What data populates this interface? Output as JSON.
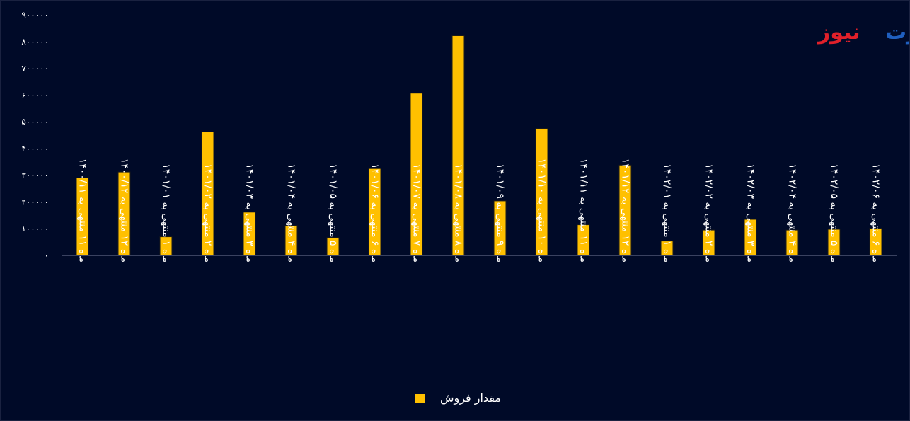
{
  "logo": {
    "part1": "تجارت",
    "part2": "نیوز",
    "color1": "#1f5fbf",
    "color2": "#e0202a"
  },
  "colors": {
    "background": "#000a28",
    "bar": "#ffc000",
    "bar_edge": "#1a1a1a",
    "text": "#ffffff"
  },
  "chart_data": {
    "type": "bar",
    "title": "",
    "xlabel": "",
    "ylabel": "",
    "ylim": [
      0,
      900000
    ],
    "y_ticks": [
      0,
      100000,
      200000,
      300000,
      400000,
      500000,
      600000,
      700000,
      800000,
      900000
    ],
    "y_tick_labels": [
      "۰",
      "۱۰۰۰۰۰",
      "۲۰۰۰۰۰",
      "۳۰۰۰۰۰",
      "۴۰۰۰۰۰",
      "۵۰۰۰۰۰",
      "۶۰۰۰۰۰",
      "۷۰۰۰۰۰",
      "۸۰۰۰۰۰",
      "۹۰۰۰۰۰"
    ],
    "grid": false,
    "legend_position": "bottom",
    "categories": [
      "ماه ۱۱ منتهی به ۱۴۰۰/۱۱",
      "ماه ۱۲ منتهی به ۱۴۰۰/۱۲",
      "ماه ۱ منتهی به ۱۴۰۱/۰۱",
      "ماه ۲ منتهی به ۱۴۰۱/۰۲",
      "ماه ۳ منتهی به ۱۴۰۱/۰۳",
      "ماه ۴ منتهی به ۱۴۰۱/۰۴",
      "ماه ۵ منتهی به ۱۴۰۱/۰۵",
      "ماه ۶ منتهی به ۱۴۰۱/۰۶",
      "ماه ۷ منتهی به ۱۴۰۱/۰۷",
      "ماه ۸ منتهی به ۱۴۰۱/۰۸",
      "ماه ۹ منتهی به ۱۴۰۱/۰۹",
      "ماه ۱۰ منتهی به ۱۴۰۱/۱۰",
      "ماه ۱۱ منتهی به ۱۴۰۱/۱۱",
      "ماه ۱۲ منتهی به ۱۴۰۱/۱۲",
      "ماه ۱ منتهی به ۱۴۰۲/۰۱",
      "ماه ۲ منتهی به ۱۴۰۲/۰۲",
      "ماه ۳ منتهی به ۱۴۰۲/۰۳",
      "ماه ۴ منتهی به ۱۴۰۲/۰۴",
      "ماه ۵ منتهی به ۱۴۰۲/۰۵",
      "ماه ۶ منتهی به ۱۴۰۲/۰۶"
    ],
    "series": [
      {
        "name": "مقدار فروش",
        "values": [
          290000,
          312000,
          70000,
          462000,
          162000,
          112000,
          67000,
          325000,
          607000,
          822000,
          204000,
          475000,
          115000,
          338000,
          54000,
          95000,
          135000,
          95000,
          98000,
          102000
        ]
      }
    ]
  }
}
